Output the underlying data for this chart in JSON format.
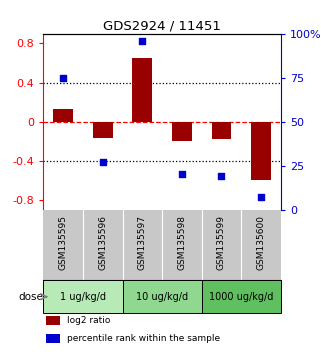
{
  "title": "GDS2924 / 11451",
  "samples": [
    "GSM135595",
    "GSM135596",
    "GSM135597",
    "GSM135598",
    "GSM135599",
    "GSM135600"
  ],
  "log2_ratio": [
    0.13,
    -0.17,
    0.65,
    -0.2,
    -0.18,
    -0.6
  ],
  "percentile_rank": [
    75,
    27,
    96,
    20,
    19,
    7
  ],
  "dose_groups": [
    {
      "label": "1 ug/kg/d",
      "n": 2,
      "color": "#b8eab8"
    },
    {
      "label": "10 ug/kg/d",
      "n": 2,
      "color": "#90d890"
    },
    {
      "label": "1000 ug/kg/d",
      "n": 2,
      "color": "#60c060"
    }
  ],
  "bar_color": "#990000",
  "dot_color": "#0000cc",
  "ylim_left": [
    -0.9,
    0.9
  ],
  "ylim_right": [
    0,
    100
  ],
  "yticks_left": [
    -0.8,
    -0.4,
    0.0,
    0.4,
    0.8
  ],
  "yticks_right": [
    0,
    25,
    50,
    75,
    100
  ],
  "hline_black": [
    -0.4,
    0.4
  ],
  "hline_red": [
    0.0
  ],
  "bg_color": "#ffffff",
  "sample_bg_color": "#c8c8c8",
  "bar_width": 0.5,
  "dose_label": "dose",
  "legend_items": [
    {
      "label": "log2 ratio",
      "color": "#990000"
    },
    {
      "label": "percentile rank within the sample",
      "color": "#0000cc"
    }
  ]
}
